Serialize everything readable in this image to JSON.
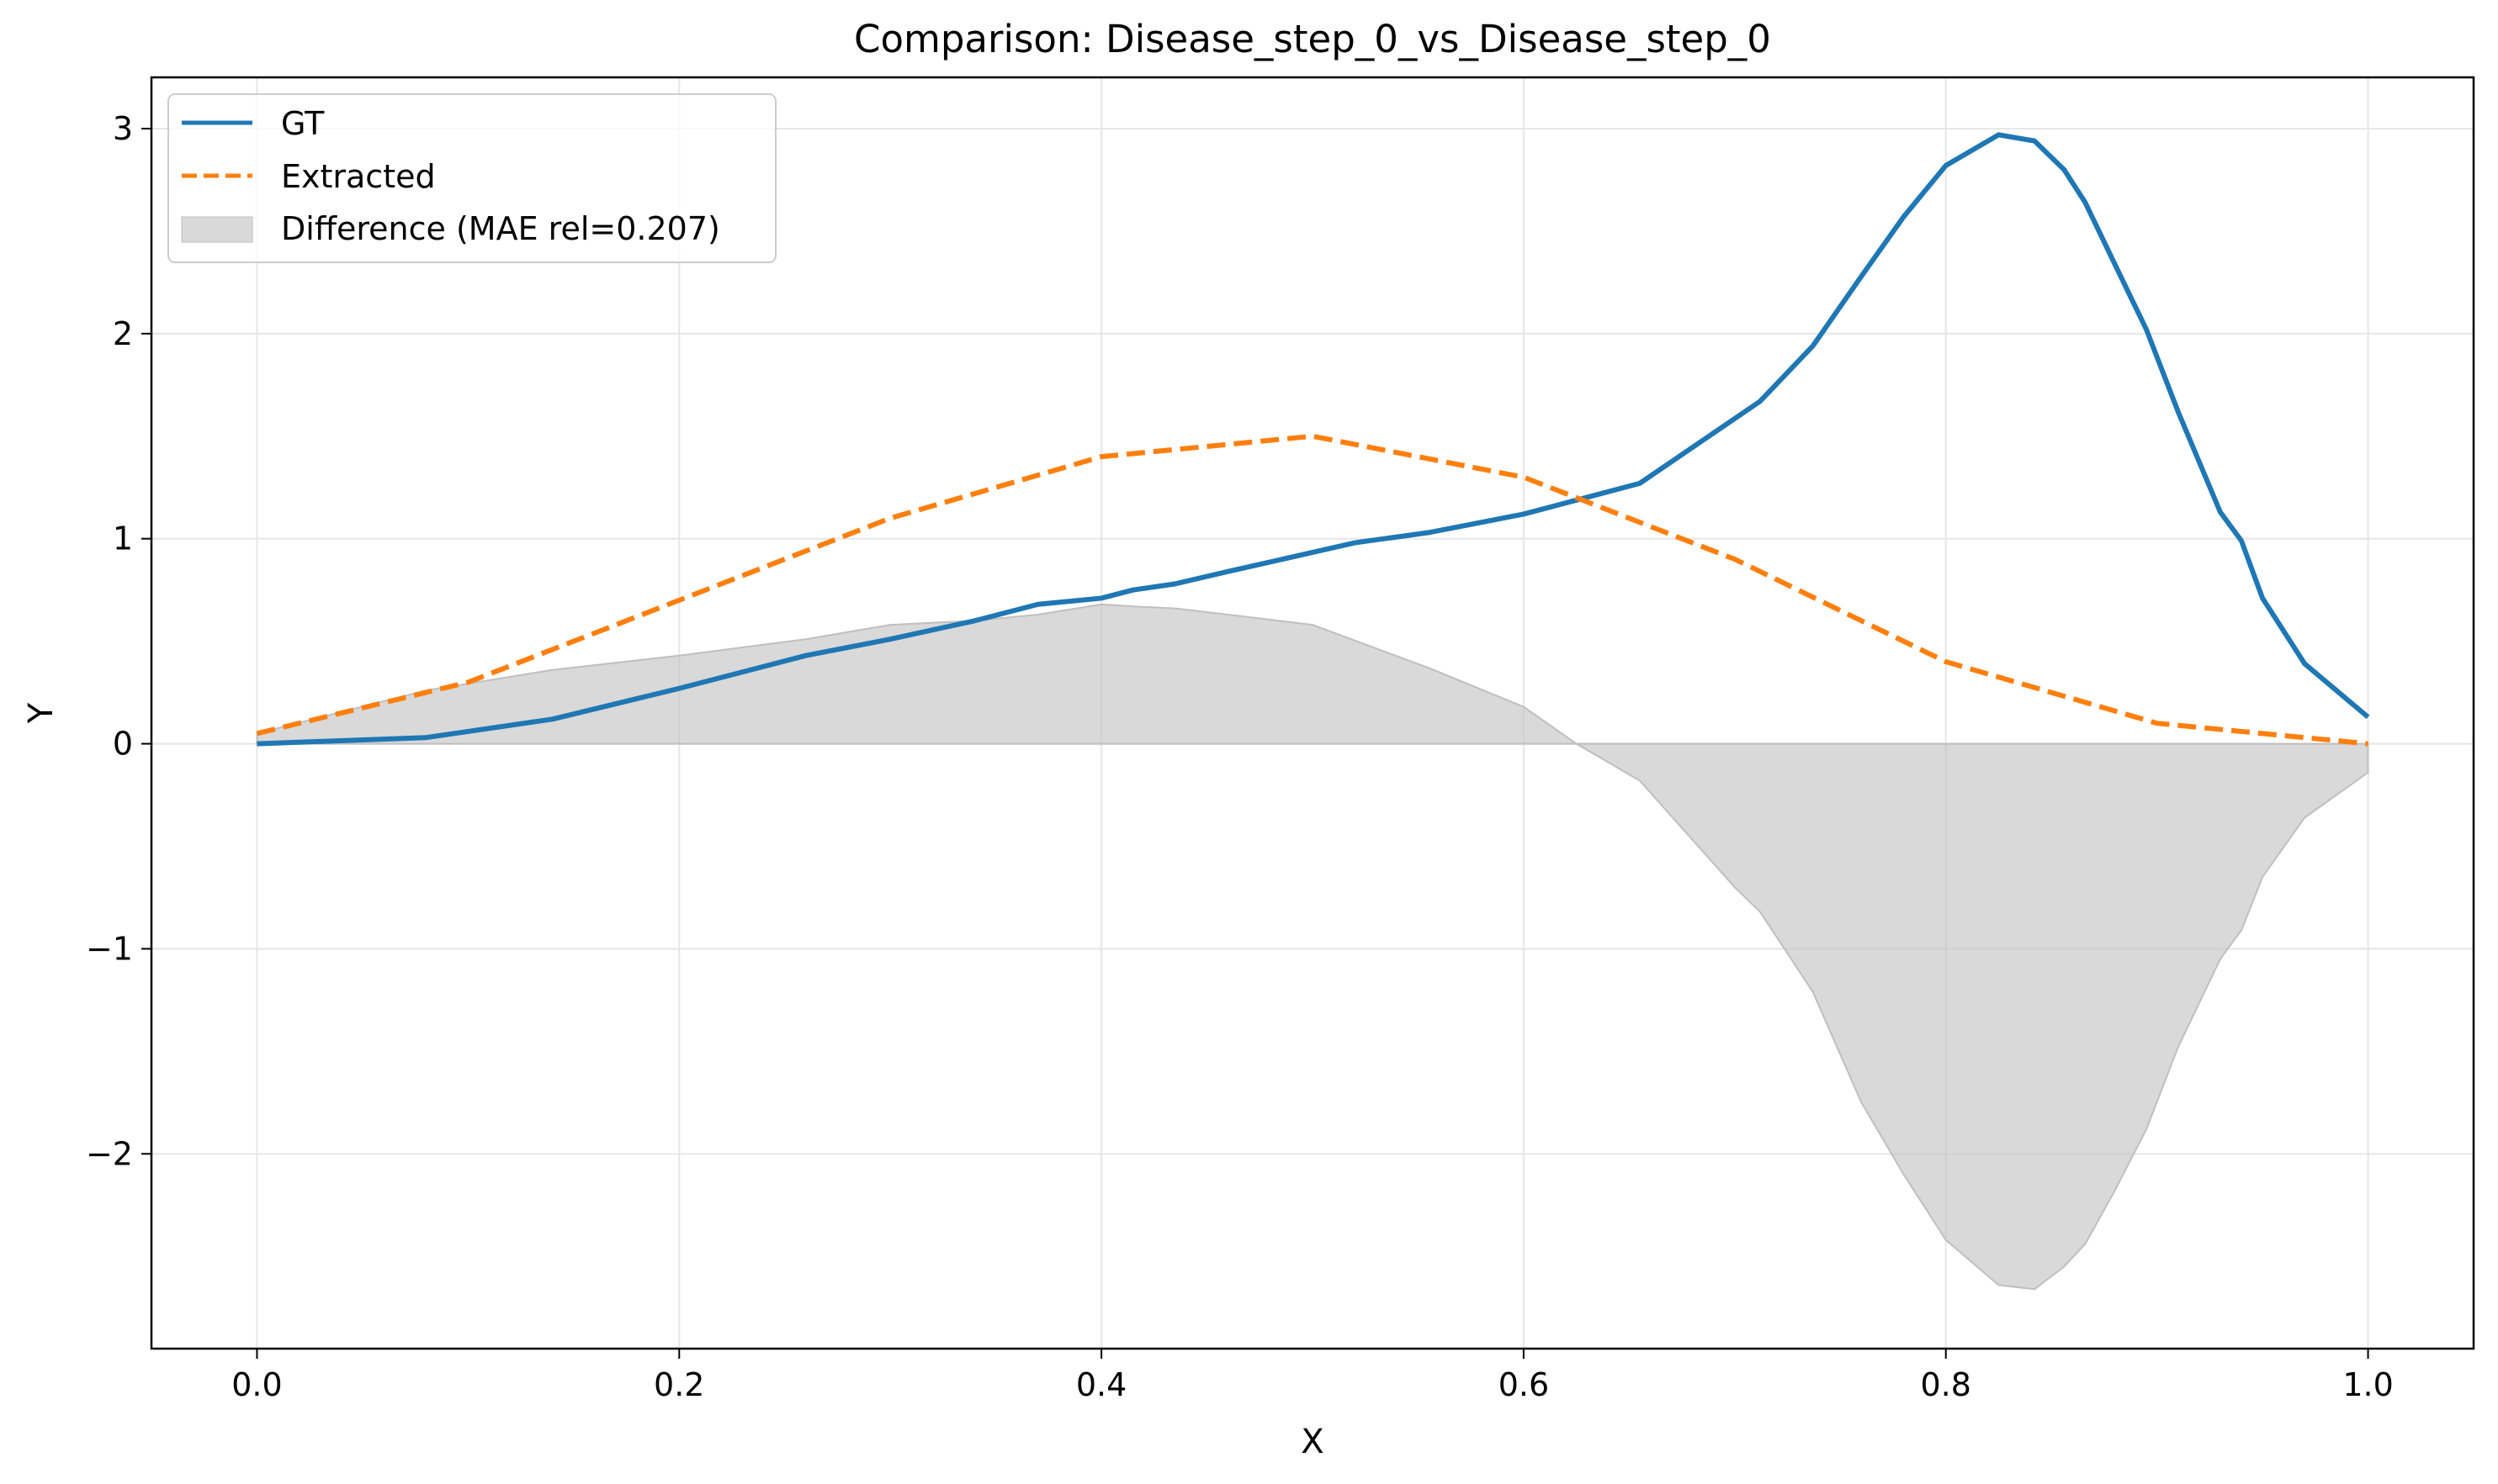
{
  "chart_data": {
    "type": "line",
    "title": "Comparison: Disease_step_0_vs_Disease_step_0",
    "xlabel": "X",
    "ylabel": "Y",
    "xlim": [
      -0.05,
      1.05
    ],
    "ylim": [
      -2.95,
      3.25
    ],
    "grid": true,
    "legend_position": "upper-left",
    "x_ticks": [
      0.0,
      0.2,
      0.4,
      0.6,
      0.8,
      1.0
    ],
    "x_tick_labels": [
      "0.0",
      "0.2",
      "0.4",
      "0.6",
      "0.8",
      "1.0"
    ],
    "y_ticks": [
      -2,
      -1,
      0,
      1,
      2,
      3
    ],
    "y_tick_labels": [
      "−2",
      "−1",
      "0",
      "1",
      "2",
      "3"
    ],
    "series": [
      {
        "name": "GT",
        "style": "solid",
        "color": "#1f77b4",
        "x": [
          0.0,
          0.08,
          0.14,
          0.2,
          0.26,
          0.3,
          0.34,
          0.37,
          0.4,
          0.415,
          0.435,
          0.46,
          0.49,
          0.52,
          0.555,
          0.6,
          0.655,
          0.712,
          0.737,
          0.76,
          0.78,
          0.8,
          0.825,
          0.842,
          0.856,
          0.866,
          0.88,
          0.895,
          0.91,
          0.93,
          0.94,
          0.95,
          0.97,
          1.0
        ],
        "y": [
          0.0,
          0.03,
          0.12,
          0.27,
          0.43,
          0.51,
          0.6,
          0.68,
          0.71,
          0.75,
          0.78,
          0.84,
          0.91,
          0.98,
          1.03,
          1.12,
          1.27,
          1.67,
          1.94,
          2.28,
          2.57,
          2.82,
          2.97,
          2.94,
          2.8,
          2.64,
          2.34,
          2.02,
          1.62,
          1.13,
          0.99,
          0.71,
          0.39,
          0.13
        ]
      },
      {
        "name": "Extracted",
        "style": "dashed",
        "color": "#ff7f0e",
        "x": [
          0.0,
          0.1,
          0.2,
          0.3,
          0.4,
          0.5,
          0.6,
          0.7,
          0.8,
          0.9,
          1.0
        ],
        "y": [
          0.05,
          0.3,
          0.7,
          1.1,
          1.4,
          1.5,
          1.3,
          0.9,
          0.4,
          0.1,
          0.0
        ]
      }
    ],
    "difference": {
      "label": "Difference (MAE rel=0.207)",
      "color": "#bfbfbf",
      "x": [
        0.0,
        0.08,
        0.14,
        0.2,
        0.26,
        0.3,
        0.34,
        0.37,
        0.4,
        0.415,
        0.435,
        0.46,
        0.5,
        0.555,
        0.6,
        0.625,
        0.655,
        0.7,
        0.712,
        0.737,
        0.76,
        0.78,
        0.8,
        0.825,
        0.842,
        0.856,
        0.866,
        0.88,
        0.895,
        0.91,
        0.93,
        0.94,
        0.95,
        0.97,
        1.0
      ],
      "y": [
        0.05,
        0.26,
        0.36,
        0.43,
        0.51,
        0.58,
        0.6,
        0.63,
        0.68,
        0.67,
        0.66,
        0.63,
        0.58,
        0.37,
        0.18,
        0.0,
        -0.18,
        -0.7,
        -0.82,
        -1.21,
        -1.75,
        -2.1,
        -2.42,
        -2.64,
        -2.66,
        -2.55,
        -2.44,
        -2.18,
        -1.88,
        -1.48,
        -1.05,
        -0.91,
        -0.65,
        -0.36,
        -0.14
      ]
    }
  }
}
